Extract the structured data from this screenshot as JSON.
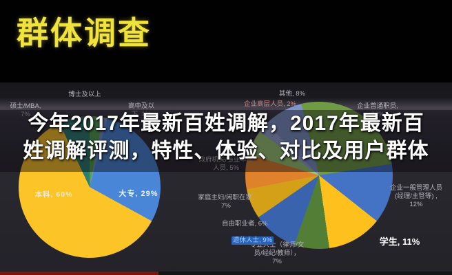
{
  "header": {
    "title": "群体调查"
  },
  "overlay": {
    "line1": "今年2017年最新百姓调解，2017年最新百",
    "line2": "姓调解评测，特性、体验、对比及用户群体"
  },
  "chart_data": [
    {
      "type": "pie",
      "name": "education-distribution",
      "start_deg": 0,
      "labels": [
        "博士及以上",
        "高中及以下",
        "大专",
        "本科",
        "硕士/MBA"
      ],
      "values": [
        3,
        1,
        29,
        60,
        7
      ],
      "colors": [
        "#53a351",
        "#8090c8",
        "#4a86d8",
        "#fdc428",
        "#2e7d73"
      ],
      "legend_position": "around",
      "display_labels": {
        "boshi": "博士及以上",
        "shuoshi": "硕士/MBA,\n7%",
        "gaozhong": "高中及以\n下, 1%",
        "benke": "本科, 60%",
        "dazhuan": "大专, 29%"
      }
    },
    {
      "type": "pie",
      "name": "occupation-distribution",
      "start_deg": -14,
      "labels": [
        "企业普通职员",
        "企业一般管理人员（经理/主管等）",
        "学生",
        "专业人士（律师/文员/经纪/教师）",
        "退休人士",
        "自由职业者",
        "家庭主妇/闲职在家",
        "政府机关/事业单位人员",
        "企业高层人员",
        "其他"
      ],
      "values": [
        24,
        12,
        11,
        7,
        9,
        6,
        7,
        5,
        2,
        8
      ],
      "colors": [
        "#6e9b44",
        "#4472c4",
        "#fdc01c",
        "#527f35",
        "#3a63ae",
        "#d4a017",
        "#e0812c",
        "#9cc873",
        "#97a6d8",
        "#7f94c9"
      ],
      "legend_position": "around",
      "display_labels": {
        "qita": "其他, 8%",
        "gaoceng": "企业高层人员, 2%",
        "putong": "企业普通职员,\n24%",
        "guanli": "企业一般管理人员\n(经理/主管等) ,\n12%",
        "xuesheng": "学生, 11%",
        "zhuanye": "专业人士（律师/文\n员/经纪/教师），\n7%",
        "tuixiu": "退休人士, 9%",
        "ziyou": "自由职业者, 6%",
        "jiating": "家庭主妇/闲职在家,\n7%",
        "zhengfu": "政府机关/事业单位\n人员, 5%"
      }
    }
  ],
  "player": {
    "progress_color": "#7d150d",
    "progress_percent": "35%"
  }
}
